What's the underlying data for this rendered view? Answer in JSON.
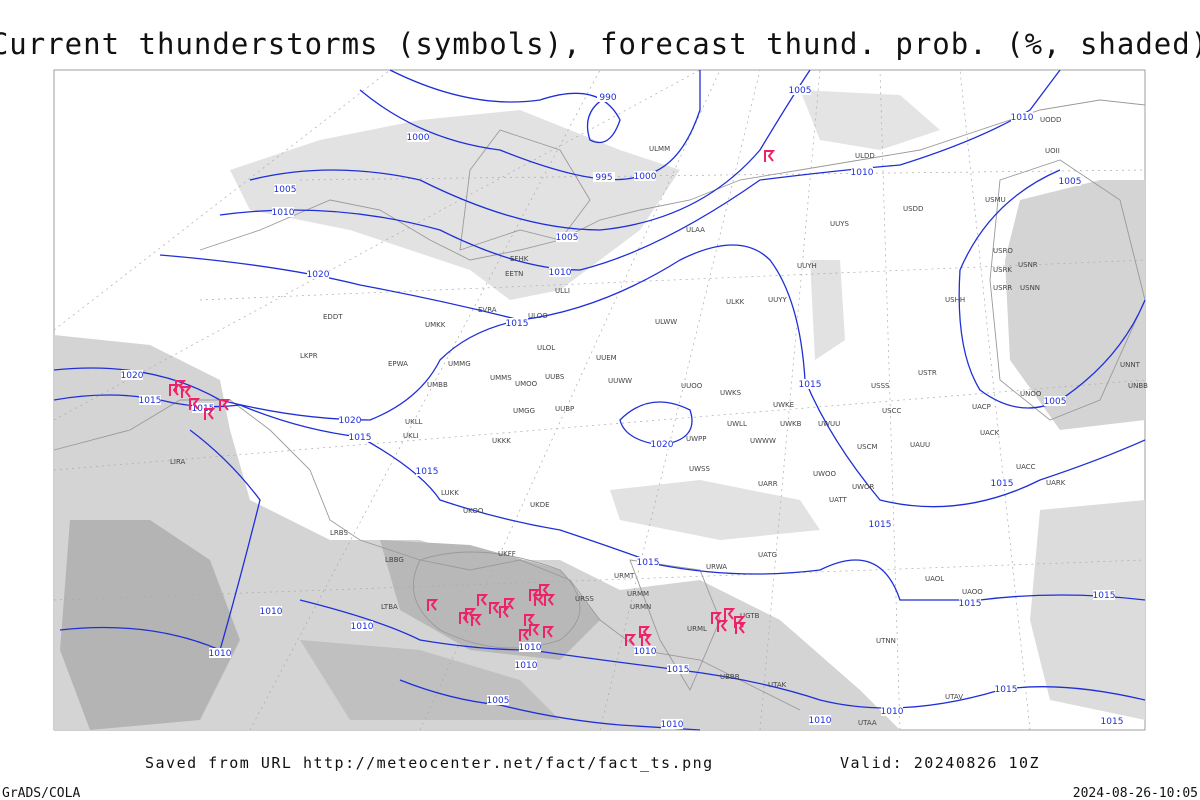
{
  "header": {
    "title": "Current thunderstorms (symbols), forecast thund. prob. (%, shaded)"
  },
  "footer": {
    "saved_from": "Saved from URL http://meteocenter.net/fact/fact_ts.png",
    "valid": "Valid: 20240826 10Z",
    "software": "GrADS/COLA",
    "timestamp": "2024-08-26-10:05"
  },
  "isobar_labels": [
    "990",
    "1005",
    "1010",
    "1000",
    "1000",
    "995",
    "1010",
    "1005",
    "1005",
    "1010",
    "1005",
    "1010",
    "1020",
    "1015",
    "1020",
    "1015",
    "1015",
    "1015",
    "1020",
    "1015",
    "1020",
    "1005",
    "1015",
    "1015",
    "1015",
    "1015",
    "1010",
    "1010",
    "1015",
    "1015",
    "1010",
    "1010",
    "1010",
    "1015",
    "1010",
    "1005",
    "1015",
    "1010",
    "1010",
    "1010",
    "1015"
  ],
  "stations": [
    "ULLI",
    "EFHK",
    "EETN",
    "EVRA",
    "ULOO",
    "UMKK",
    "EDDT",
    "LKPR",
    "EPWA",
    "UMMG",
    "ULOL",
    "UUEM",
    "UMMS",
    "UMOO",
    "UUBS",
    "UUWW",
    "UMBB",
    "UUOO",
    "UWKS",
    "UMGG",
    "UUBP",
    "ULAA",
    "UUYS",
    "ULWW",
    "ULKK",
    "UUYY",
    "UUYH",
    "ULDD",
    "UODD",
    "UOII",
    "USDD",
    "USMU",
    "USRO",
    "USRK",
    "USNR",
    "USRR",
    "USNN",
    "USHH",
    "UNNT",
    "UNBB",
    "USTR",
    "USSS",
    "USCC",
    "UNOO",
    "USCM",
    "UAUU",
    "UACP",
    "UACK",
    "UACC",
    "UARK",
    "UATT",
    "UWOR",
    "UWOO",
    "UARR",
    "UWWW",
    "UWKE",
    "UWKB",
    "UWUU",
    "UWLL",
    "UWPP",
    "UWSS",
    "UKFF",
    "URSS",
    "URMM",
    "URMT",
    "URMN",
    "URML",
    "UGTB",
    "UBBB",
    "UTAK",
    "UTAV",
    "UTAA",
    "UTNN",
    "UAOL",
    "UAOO",
    "UATG",
    "URWA",
    "UKOO",
    "UKDE",
    "UKKK",
    "UKLL",
    "UKLI",
    "LUKK",
    "LRBS",
    "LBBG",
    "LTBA",
    "LIRA",
    "ULMM"
  ]
}
